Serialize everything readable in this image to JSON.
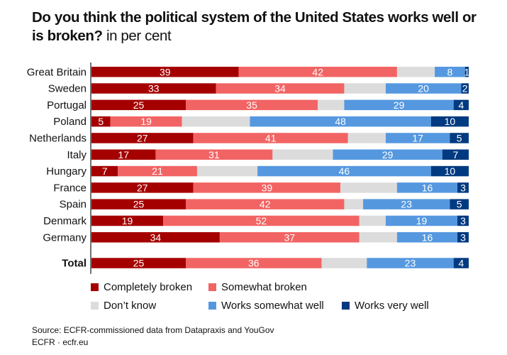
{
  "title": {
    "bold": "Do you think the political system of the United States works well or is broken?",
    "unit": "in per cent"
  },
  "colors": {
    "completely_broken": "#a50000",
    "somewhat_broken": "#f26464",
    "dont_know": "#dcdcdc",
    "works_somewhat_well": "#5598e0",
    "works_very_well": "#003a80"
  },
  "legend": [
    {
      "key": "completely_broken",
      "label": "Completely broken"
    },
    {
      "key": "somewhat_broken",
      "label": "Somewhat broken"
    },
    {
      "key": "dont_know",
      "label": "Don’t know"
    },
    {
      "key": "works_somewhat_well",
      "label": "Works somewhat well"
    },
    {
      "key": "works_very_well",
      "label": "Works very well"
    }
  ],
  "source": {
    "line1": "Source: ECFR-commissioned data from Datapraxis and YouGov",
    "line2": "ECFR · ecfr.eu"
  },
  "chart_data": {
    "type": "bar",
    "orientation": "horizontal",
    "stacked": true,
    "title": "Do you think the political system of the United States works well or is broken? in per cent",
    "xlabel": "",
    "ylabel": "",
    "xlim": [
      0,
      100
    ],
    "grid": false,
    "legend_position": "bottom",
    "categories": [
      "Great Britain",
      "Sweden",
      "Portugal",
      "Poland",
      "Netherlands",
      "Italy",
      "Hungary",
      "France",
      "Spain",
      "Denmark",
      "Germany",
      "Total"
    ],
    "series": [
      {
        "key": "completely_broken",
        "name": "Completely broken",
        "values": [
          39,
          33,
          25,
          5,
          27,
          17,
          7,
          27,
          25,
          19,
          34,
          25
        ],
        "labeled": true
      },
      {
        "key": "somewhat_broken",
        "name": "Somewhat broken",
        "values": [
          42,
          34,
          35,
          19,
          41,
          31,
          21,
          39,
          42,
          52,
          37,
          36
        ],
        "labeled": true
      },
      {
        "key": "dont_know",
        "name": "Don’t know",
        "values": [
          10,
          11,
          7,
          18,
          10,
          16,
          16,
          15,
          5,
          7,
          10,
          12
        ],
        "labeled": false
      },
      {
        "key": "works_somewhat_well",
        "name": "Works somewhat well",
        "values": [
          8,
          20,
          29,
          48,
          17,
          29,
          46,
          16,
          23,
          19,
          16,
          23
        ],
        "labeled": true
      },
      {
        "key": "works_very_well",
        "name": "Works very well",
        "values": [
          1,
          2,
          4,
          10,
          5,
          7,
          10,
          3,
          5,
          3,
          3,
          4
        ],
        "labeled": true
      }
    ],
    "emphasized_category": "Total"
  }
}
